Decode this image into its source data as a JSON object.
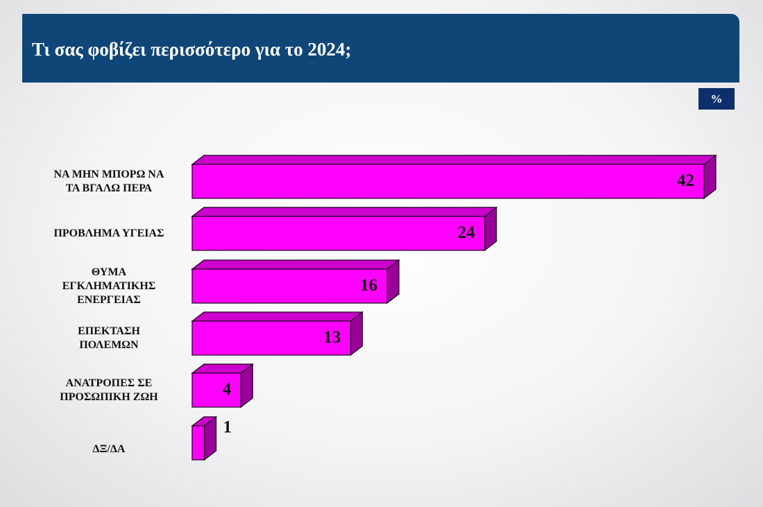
{
  "title": "Τι σας φοβίζει περισσότερο για το 2024;",
  "unit_badge": "%",
  "colors": {
    "header_bg": "#0f4677",
    "badge_bg": "#0d2f6b",
    "bar_front": "#ff00ff",
    "bar_top": "#cc00cc",
    "bar_side": "#9a009a",
    "bar_outline": "#1a001a"
  },
  "chart_data": {
    "type": "bar",
    "orientation": "horizontal",
    "style": "3d",
    "categories": [
      "ΝΑ ΜΗΝ ΜΠΟΡΩ ΝΑ\nΤΑ ΒΓΑΛΩ ΠΕΡΑ",
      "ΠΡΟΒΛΗΜΑ ΥΓΕΙΑΣ",
      "ΘΥΜΑ\nΕΓΚΛΗΜΑΤΙΚΗΣ\nΕΝΕΡΓΕΙΑΣ",
      "ΕΠΕΚΤΑΣΗ\nΠΟΛΕΜΩΝ",
      "ΑΝΑΤΡΟΠΕΣ ΣΕ\nΠΡΟΣΩΠΙΚΗ ΖΩΗ",
      "ΔΞ/ΔΑ"
    ],
    "values": [
      42,
      24,
      16,
      13,
      4,
      1
    ],
    "data_labels": [
      "42",
      "24",
      "16",
      "13",
      "4",
      "1"
    ],
    "xlim": [
      0,
      42
    ],
    "grid": false,
    "legend": "none"
  }
}
